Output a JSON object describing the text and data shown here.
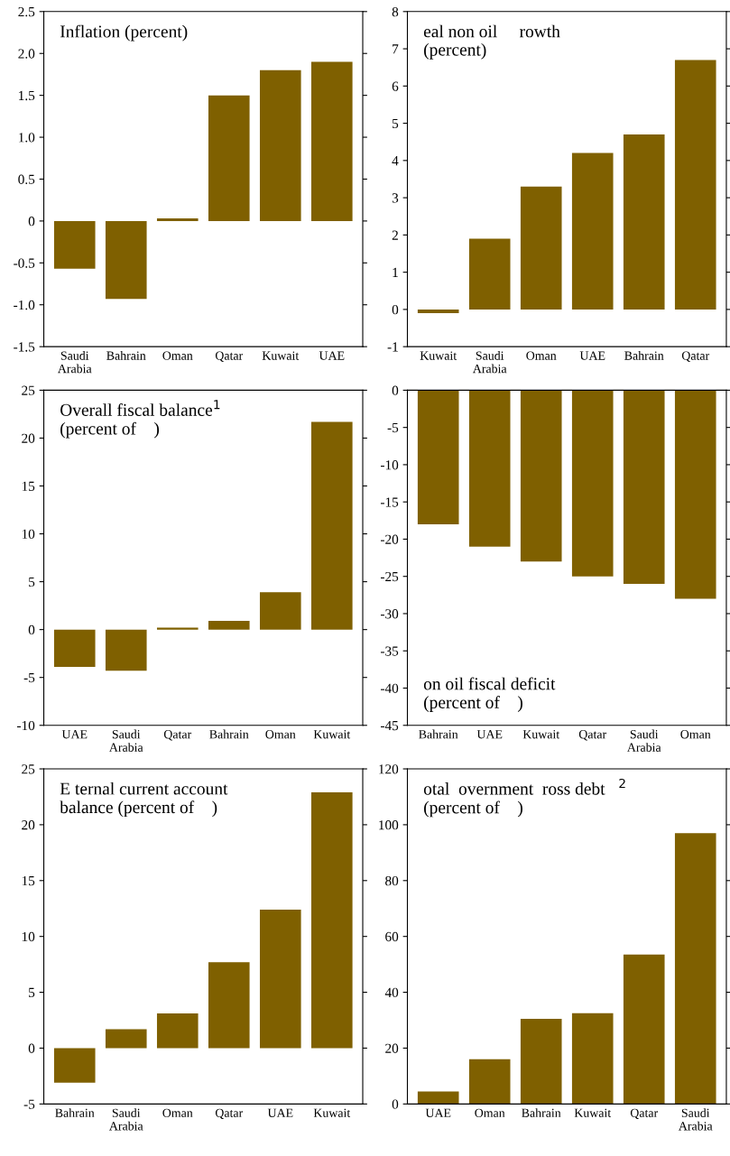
{
  "chart_data": [
    {
      "type": "bar",
      "title": "Inflation (percent)",
      "categories": [
        "Saudi Arabia",
        "Bahrain",
        "Oman",
        "Qatar",
        "Kuwait",
        "UAE"
      ],
      "values": [
        -0.57,
        -0.93,
        0.03,
        1.5,
        1.8,
        1.9
      ],
      "color": "#7f6000",
      "ylim": [
        -1.5,
        2.5
      ],
      "yticks": [
        {
          "value": -1.5,
          "label": "-1.5"
        },
        {
          "value": -1.0,
          "label": "-1.0"
        },
        {
          "value": -0.5,
          "label": "-0.5"
        },
        0,
        {
          "value": 0.5,
          "label": "0.5"
        },
        {
          "value": 1.0,
          "label": "1.0"
        },
        {
          "value": 1.5,
          "label": "1.5"
        },
        {
          "value": 2.0,
          "label": "2.0"
        },
        {
          "value": 2.5,
          "label": "2.5"
        }
      ],
      "grid": false,
      "legend": false
    },
    {
      "type": "bar",
      "title": "eal non oil     rowth\n(percent)",
      "categories": [
        "Kuwait",
        "Saudi Arabia",
        "Oman",
        "UAE",
        "Bahrain",
        "Qatar"
      ],
      "values": [
        -0.1,
        1.9,
        3.3,
        4.2,
        4.7,
        6.7
      ],
      "color": "#7f6000",
      "ylim": [
        -1,
        8
      ],
      "yticks": [
        -1,
        0,
        1,
        2,
        3,
        4,
        5,
        6,
        7,
        8
      ],
      "grid": false,
      "legend": false
    },
    {
      "type": "bar",
      "title": "Overall fiscal balance$^{1}$\n(percent of    )",
      "categories": [
        "UAE",
        "Saudi Arabia",
        "Qatar",
        "Bahrain",
        "Oman",
        "Kuwait"
      ],
      "values": [
        -3.9,
        -4.3,
        0.2,
        0.9,
        3.9,
        21.7
      ],
      "color": "#7f6000",
      "ylim": [
        -10,
        25
      ],
      "yticks": [
        -10,
        -5,
        0,
        5,
        10,
        15,
        20,
        25
      ],
      "grid": false,
      "legend": false
    },
    {
      "type": "bar",
      "title": "on oil fiscal deficit\n(percent of    )",
      "categories": [
        "Bahrain",
        "UAE",
        "Kuwait",
        "Qatar",
        "Saudi Arabia",
        "Oman"
      ],
      "values": [
        -18,
        -21,
        -23,
        -25,
        -26,
        -28
      ],
      "color": "#7f6000",
      "ylim": [
        -45,
        0
      ],
      "yticks": [
        -45,
        -40,
        -35,
        -30,
        -25,
        -20,
        -15,
        -10,
        -5,
        0
      ],
      "grid": false,
      "legend": false
    },
    {
      "type": "bar",
      "title": "E ternal current account\nbalance (percent of    )",
      "categories": [
        "Bahrain",
        "Saudi Arabia",
        "Oman",
        "Qatar",
        "UAE",
        "Kuwait"
      ],
      "values": [
        -3.1,
        1.7,
        3.1,
        7.7,
        12.4,
        22.9
      ],
      "color": "#7f6000",
      "ylim": [
        -5,
        25
      ],
      "yticks": [
        -5,
        0,
        5,
        10,
        15,
        20,
        25
      ],
      "grid": false,
      "legend": false
    },
    {
      "type": "bar",
      "title": "otal  overnment  ross debt   $^{2}$\n(percent of    )",
      "categories": [
        "UAE",
        "Oman",
        "Bahrain",
        "Kuwait",
        "Qatar",
        "Saudi Arabia"
      ],
      "values": [
        4.5,
        16,
        30.5,
        32.5,
        53.5,
        97
      ],
      "color": "#7f6000",
      "ylim": [
        0,
        120
      ],
      "yticks": [
        0,
        20,
        40,
        60,
        80,
        100,
        120
      ],
      "grid": false,
      "legend": false
    }
  ]
}
